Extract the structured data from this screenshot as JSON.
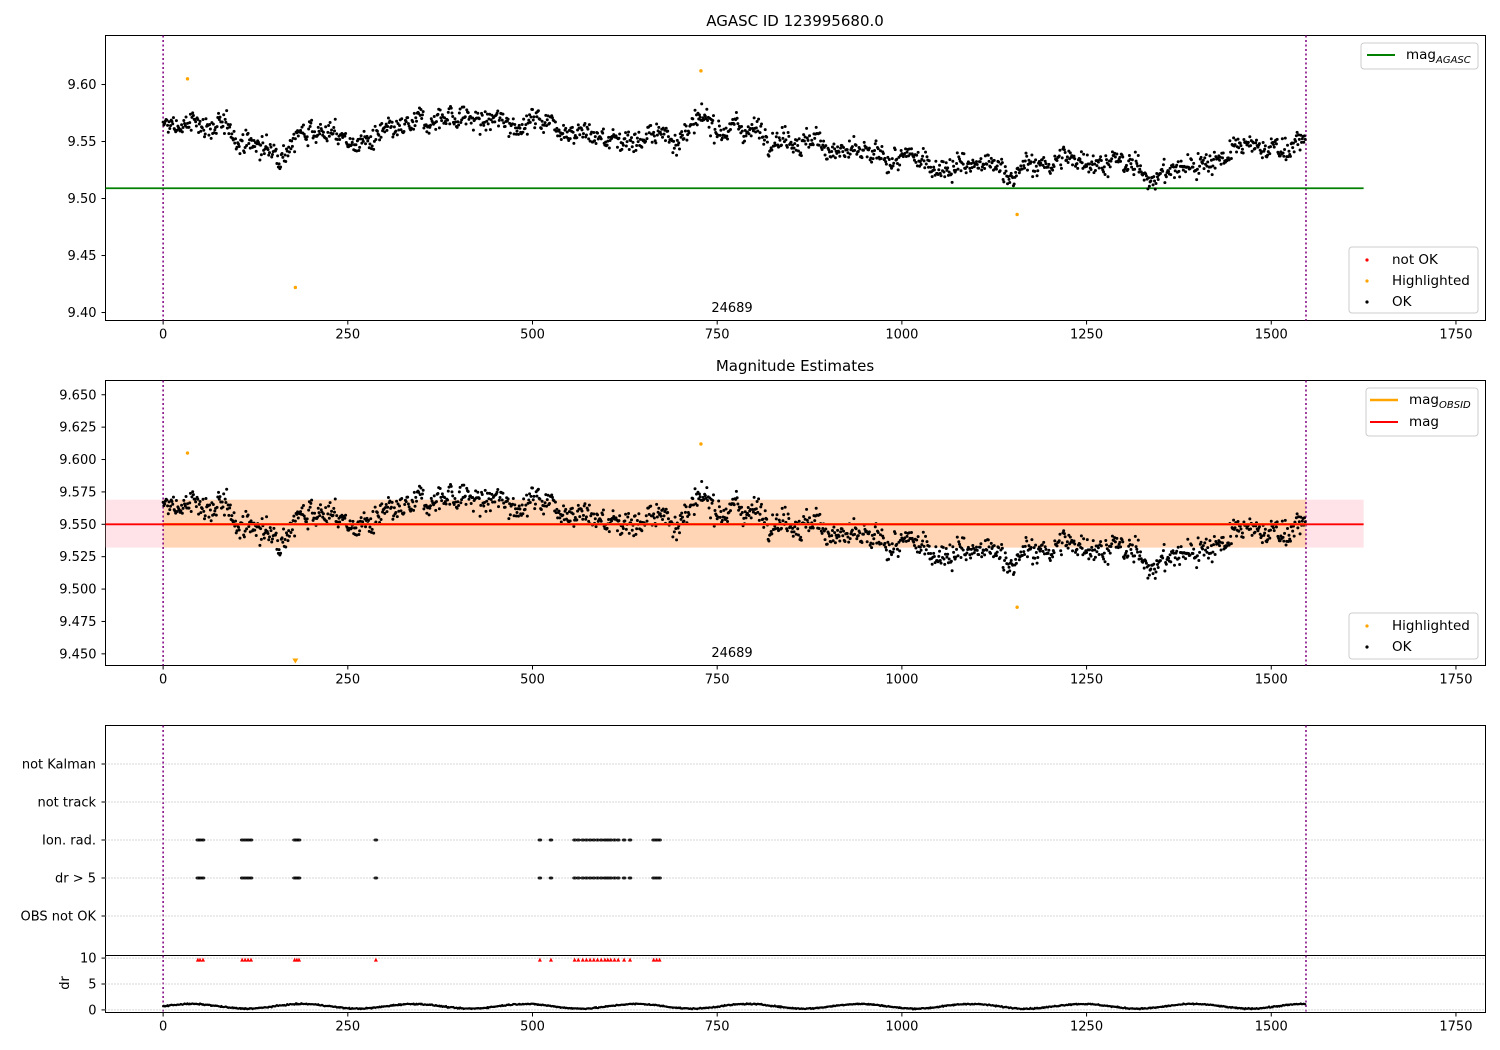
{
  "chart_data": [
    {
      "type": "scatter",
      "title": "AGASC ID 123995680.0",
      "xlim": [
        -78,
        1790
      ],
      "ylim": [
        9.393,
        9.643
      ],
      "xticks": [
        "0",
        "250",
        "500",
        "750",
        "1000",
        "1250",
        "1500",
        "1750"
      ],
      "yticks": [
        "9.40",
        "9.45",
        "9.50",
        "9.55",
        "9.60"
      ],
      "obsid_label": "24689",
      "obsid_label_x": 772,
      "obs_boundaries": [
        0,
        1547
      ],
      "series": [
        {
          "name": "mag_AGASC",
          "kind": "hline",
          "y": 9.509,
          "x_range": [
            -78,
            1625
          ],
          "color": "#008000"
        },
        {
          "name": "not OK",
          "kind": "points",
          "color": "#ff0000",
          "points": []
        },
        {
          "name": "Highlighted",
          "kind": "points",
          "color": "#ffa500",
          "points": [
            [
              33,
              9.605
            ],
            [
              728,
              9.612
            ],
            [
              179,
              9.422
            ],
            [
              1156,
              9.486
            ]
          ]
        },
        {
          "name": "OK",
          "kind": "points",
          "color": "#000000",
          "generated": {
            "n": 1547,
            "x_range": [
              0,
              1547
            ],
            "noise": 0.011,
            "trend": [
              [
                0,
                9.562
              ],
              [
                60,
                9.566
              ],
              [
                150,
                9.54
              ],
              [
                200,
                9.565
              ],
              [
                260,
                9.548
              ],
              [
                320,
                9.556
              ],
              [
                380,
                9.575
              ],
              [
                440,
                9.566
              ],
              [
                520,
                9.57
              ],
              [
                600,
                9.552
              ],
              [
                700,
                9.556
              ],
              [
                740,
                9.566
              ],
              [
                850,
                9.556
              ],
              [
                950,
                9.535
              ],
              [
                1050,
                9.531
              ],
              [
                1150,
                9.524
              ],
              [
                1250,
                9.537
              ],
              [
                1350,
                9.52
              ],
              [
                1450,
                9.542
              ],
              [
                1547,
                9.548
              ]
            ]
          }
        }
      ],
      "legends": [
        {
          "position": "upper right",
          "entries": [
            {
              "label": "mag",
              "sub": "AGASC",
              "marker": "line",
              "color": "#008000"
            }
          ]
        },
        {
          "position": "lower right",
          "entries": [
            {
              "label": "not OK",
              "marker": "dot",
              "color": "#ff0000"
            },
            {
              "label": "Highlighted",
              "marker": "dot",
              "color": "#ffa500"
            },
            {
              "label": "OK",
              "marker": "dot",
              "color": "#000000"
            }
          ]
        }
      ]
    },
    {
      "type": "scatter",
      "title": "Magnitude Estimates",
      "xlim": [
        -78,
        1790
      ],
      "ylim": [
        9.441,
        9.661
      ],
      "xticks": [
        "0",
        "250",
        "500",
        "750",
        "1000",
        "1250",
        "1500",
        "1750"
      ],
      "yticks": [
        "9.450",
        "9.475",
        "9.500",
        "9.525",
        "9.550",
        "9.575",
        "9.600",
        "9.625",
        "9.650"
      ],
      "obsid_label": "24689",
      "obsid_label_x": 772,
      "obs_boundaries": [
        0,
        1547
      ],
      "bands": [
        {
          "name": "mag band",
          "y_range": [
            9.532,
            9.569
          ],
          "x_range": [
            -78,
            1625
          ],
          "color": "#ffc0cb",
          "opacity": 0.45
        },
        {
          "name": "mag_OBSID band",
          "y_range": [
            9.532,
            9.569
          ],
          "x_range": [
            0,
            1547
          ],
          "color": "#ffa500",
          "opacity": 0.22
        }
      ],
      "series": [
        {
          "name": "mag_OBSID",
          "kind": "hline",
          "y": 9.55,
          "x_range": [
            0,
            1547
          ],
          "color": "#ffa500"
        },
        {
          "name": "mag",
          "kind": "hline",
          "y": 9.55,
          "x_range": [
            -78,
            1625
          ],
          "color": "#ff0000"
        },
        {
          "name": "Highlighted",
          "kind": "points",
          "color": "#ffa500",
          "points": [
            [
              33,
              9.605
            ],
            [
              728,
              9.612
            ],
            [
              1156,
              9.486
            ]
          ],
          "clipped": [
            [
              179,
              "down"
            ]
          ]
        },
        {
          "name": "OK",
          "kind": "points",
          "color": "#000000",
          "generated": "same as panel 1"
        }
      ],
      "legends": [
        {
          "position": "upper right",
          "entries": [
            {
              "label": "mag",
              "sub": "OBSID",
              "marker": "line",
              "color": "#ffa500"
            },
            {
              "label": "mag",
              "sub": "",
              "marker": "line",
              "color": "#ff0000"
            }
          ]
        },
        {
          "position": "lower right",
          "entries": [
            {
              "label": "Highlighted",
              "marker": "dot",
              "color": "#ffa500"
            },
            {
              "label": "OK",
              "marker": "dot",
              "color": "#000000"
            }
          ]
        }
      ]
    },
    {
      "type": "scatter",
      "title": "",
      "xlim": [
        -78,
        1790
      ],
      "categories": [
        "not Kalman",
        "not track",
        "Ion. rad.",
        "dr > 5",
        "OBS not OK"
      ],
      "flag_rows": {
        "Ion. rad.": [
          47,
          50,
          54,
          107,
          111,
          115,
          119,
          178,
          181,
          184,
          288,
          510,
          525,
          557,
          562,
          568,
          573,
          578,
          583,
          588,
          593,
          598,
          602,
          606,
          611,
          616,
          624,
          632,
          664,
          668,
          672
        ],
        "dr > 5": [
          47,
          50,
          54,
          107,
          111,
          115,
          119,
          178,
          181,
          184,
          288,
          510,
          525,
          557,
          562,
          568,
          573,
          578,
          583,
          588,
          593,
          598,
          602,
          606,
          611,
          616,
          624,
          632,
          664,
          668,
          672
        ]
      },
      "obs_boundaries": [
        0,
        1547
      ]
    },
    {
      "type": "scatter",
      "title": "",
      "xlim": [
        -78,
        1790
      ],
      "ylim": [
        -0.5,
        10.5
      ],
      "ylabel": "dr",
      "yticks": [
        "0",
        "5",
        "10"
      ],
      "xticks": [
        "0",
        "250",
        "500",
        "750",
        "1000",
        "1250",
        "1500",
        "1750"
      ],
      "clipped_markers_y": 9.7,
      "series": [
        {
          "name": "dr",
          "kind": "points",
          "color": "#000000",
          "generated": {
            "n": 1547,
            "mean": 0.7,
            "amp": 0.45
          }
        }
      ],
      "obs_boundaries": [
        0,
        1547
      ]
    }
  ]
}
